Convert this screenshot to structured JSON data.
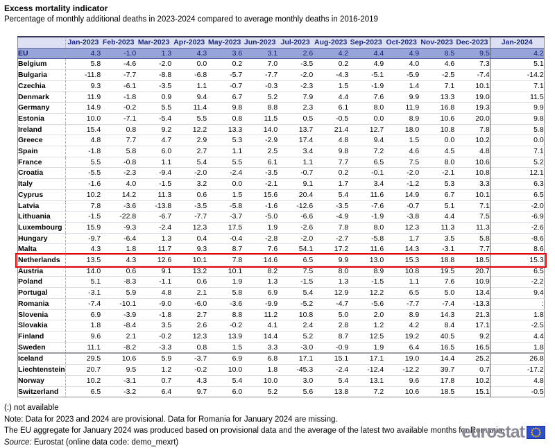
{
  "chart_data": {
    "type": "table",
    "title": "Excess mortality indicator",
    "subtitle": "Percentage of monthly additional deaths in 2023-2024 compared to average monthly deaths in 2016-2019",
    "missing_symbol": ":",
    "columns": [
      "Jan-2023",
      "Feb-2023",
      "Mar-2023",
      "Apr-2023",
      "May-2023",
      "Jun-2023",
      "Jul-2023",
      "Aug-2023",
      "Sep-2023",
      "Oct-2023",
      "Nov-2023",
      "Dec-2023",
      "Jan-2024"
    ],
    "rows": [
      {
        "label": "EU",
        "eu": true,
        "values": [
          4.3,
          -1.0,
          1.3,
          4.3,
          3.6,
          3.1,
          2.6,
          4.2,
          4.4,
          4.9,
          8.5,
          9.5,
          4.2
        ]
      },
      {
        "label": "Belgium",
        "values": [
          5.8,
          -4.6,
          -2.0,
          0.0,
          0.2,
          7.0,
          -3.5,
          0.2,
          4.9,
          4.0,
          4.6,
          7.3,
          5.1
        ]
      },
      {
        "label": "Bulgaria",
        "values": [
          -11.8,
          -7.7,
          -8.8,
          -6.8,
          -5.7,
          -7.7,
          -2.0,
          -4.3,
          -5.1,
          -5.9,
          -2.5,
          -7.4,
          -14.2
        ]
      },
      {
        "label": "Czechia",
        "values": [
          9.3,
          -6.1,
          -3.5,
          1.1,
          -0.7,
          -0.3,
          -2.3,
          1.5,
          -1.9,
          1.4,
          7.1,
          10.1,
          7.1
        ]
      },
      {
        "label": "Denmark",
        "values": [
          11.9,
          -1.8,
          0.9,
          9.4,
          6.7,
          5.2,
          7.9,
          4.4,
          7.6,
          9.9,
          13.3,
          19.0,
          11.5
        ]
      },
      {
        "label": "Germany",
        "values": [
          14.9,
          -0.2,
          5.5,
          11.4,
          9.8,
          8.8,
          2.3,
          6.1,
          8.0,
          11.9,
          16.8,
          19.3,
          9.9
        ]
      },
      {
        "label": "Estonia",
        "values": [
          10.0,
          -7.1,
          -5.4,
          5.5,
          0.8,
          11.5,
          0.5,
          -0.5,
          0.0,
          8.9,
          10.6,
          20.0,
          9.8
        ]
      },
      {
        "label": "Ireland",
        "values": [
          15.4,
          0.8,
          9.2,
          12.2,
          13.3,
          14.0,
          13.7,
          21.4,
          12.7,
          18.0,
          10.8,
          7.8,
          5.8
        ]
      },
      {
        "label": "Greece",
        "values": [
          4.8,
          7.7,
          4.7,
          2.9,
          5.3,
          -2.9,
          17.4,
          4.8,
          9.4,
          1.5,
          0.0,
          10.2,
          0.0
        ]
      },
      {
        "label": "Spain",
        "values": [
          -1.8,
          5.8,
          6.0,
          2.7,
          1.1,
          2.5,
          3.4,
          9.8,
          7.2,
          4.6,
          4.5,
          4.8,
          7.1
        ]
      },
      {
        "label": "France",
        "values": [
          5.5,
          -0.8,
          1.1,
          5.4,
          5.5,
          6.1,
          1.1,
          7.7,
          6.5,
          7.5,
          8.0,
          10.6,
          5.2
        ]
      },
      {
        "label": "Croatia",
        "values": [
          -5.5,
          -2.3,
          -9.4,
          -2.0,
          -2.4,
          -3.5,
          -0.7,
          0.2,
          -0.1,
          -2.0,
          -2.1,
          10.8,
          12.1
        ]
      },
      {
        "label": "Italy",
        "values": [
          -1.6,
          4.0,
          -1.5,
          3.2,
          0.0,
          -2.1,
          9.1,
          1.7,
          3.4,
          -1.2,
          5.3,
          3.3,
          6.3
        ]
      },
      {
        "label": "Cyprus",
        "values": [
          10.2,
          14.2,
          11.3,
          0.6,
          1.5,
          15.6,
          20.4,
          5.4,
          11.6,
          14.9,
          6.7,
          10.1,
          6.5
        ]
      },
      {
        "label": "Latvia",
        "values": [
          7.8,
          -3.6,
          -13.8,
          -3.5,
          -5.8,
          -1.6,
          -12.6,
          -3.5,
          -7.6,
          -0.7,
          5.1,
          7.1,
          -2.0
        ]
      },
      {
        "label": "Lithuania",
        "values": [
          -1.5,
          -22.8,
          -6.7,
          -7.7,
          -3.7,
          -5.0,
          -6.6,
          -4.9,
          -1.9,
          -3.8,
          4.4,
          7.5,
          -6.9
        ]
      },
      {
        "label": "Luxembourg",
        "values": [
          15.9,
          -9.3,
          -2.4,
          12.3,
          17.5,
          1.9,
          -2.6,
          7.8,
          8.0,
          12.3,
          11.3,
          11.3,
          -2.6
        ]
      },
      {
        "label": "Hungary",
        "values": [
          -9.7,
          -6.4,
          1.3,
          0.4,
          -0.4,
          -2.8,
          -2.0,
          -2.7,
          -5.8,
          1.7,
          3.5,
          5.8,
          -8.6
        ]
      },
      {
        "label": "Malta",
        "values": [
          4.3,
          1.8,
          11.7,
          9.3,
          8.7,
          7.6,
          54.1,
          17.2,
          11.6,
          14.3,
          -3.1,
          7.7,
          8.6
        ]
      },
      {
        "label": "Netherlands",
        "highlight": true,
        "values": [
          13.5,
          4.3,
          12.6,
          10.1,
          7.8,
          14.6,
          6.5,
          9.9,
          13.0,
          15.3,
          18.8,
          18.5,
          15.3
        ]
      },
      {
        "label": "Austria",
        "values": [
          14.0,
          0.6,
          9.1,
          13.2,
          10.1,
          8.2,
          7.5,
          8.0,
          8.9,
          10.8,
          19.5,
          20.7,
          6.5
        ]
      },
      {
        "label": "Poland",
        "values": [
          5.1,
          -8.3,
          -1.1,
          0.6,
          1.9,
          1.3,
          -1.5,
          1.3,
          -1.5,
          1.1,
          7.6,
          10.9,
          -2.2
        ]
      },
      {
        "label": "Portugal",
        "values": [
          -3.1,
          5.9,
          4.8,
          2.1,
          5.8,
          6.9,
          5.4,
          12.9,
          12.2,
          6.5,
          5.0,
          13.4,
          9.4
        ]
      },
      {
        "label": "Romania",
        "values": [
          -7.4,
          -10.1,
          -9.0,
          -6.0,
          -3.6,
          -9.9,
          -5.2,
          -4.7,
          -5.6,
          -7.7,
          -7.4,
          -13.3,
          ":"
        ]
      },
      {
        "label": "Slovenia",
        "values": [
          6.9,
          -3.9,
          -1.8,
          2.7,
          8.8,
          11.2,
          10.8,
          5.0,
          2.0,
          8.9,
          14.3,
          21.3,
          1.8
        ]
      },
      {
        "label": "Slovakia",
        "values": [
          1.8,
          -8.4,
          3.5,
          2.6,
          -0.2,
          4.1,
          2.4,
          2.8,
          1.2,
          4.2,
          8.4,
          17.1,
          -2.5
        ]
      },
      {
        "label": "Finland",
        "values": [
          9.6,
          2.1,
          -0.2,
          12.3,
          13.9,
          14.4,
          5.2,
          8.7,
          12.5,
          19.2,
          40.5,
          9.2,
          4.4
        ]
      },
      {
        "label": "Sweden",
        "values": [
          11.1,
          -8.2,
          -3.3,
          0.8,
          1.5,
          3.3,
          -3.0,
          -0.9,
          1.9,
          6.4,
          16.5,
          16.5,
          1.8
        ]
      },
      {
        "label": "Iceland",
        "separator_before": true,
        "values": [
          29.5,
          10.6,
          5.9,
          -3.7,
          6.9,
          6.8,
          17.1,
          15.1,
          17.1,
          19.0,
          14.4,
          25.2,
          26.8
        ]
      },
      {
        "label": "Liechtenstein",
        "values": [
          20.7,
          9.5,
          1.2,
          -0.2,
          10.0,
          1.8,
          -45.3,
          -2.4,
          -12.4,
          -12.2,
          39.7,
          0.7,
          -17.2
        ]
      },
      {
        "label": "Norway",
        "values": [
          10.2,
          -3.1,
          0.7,
          4.3,
          5.4,
          10.0,
          3.0,
          5.4,
          13.1,
          9.6,
          17.8,
          10.2,
          4.8
        ]
      },
      {
        "label": "Switzerland",
        "values": [
          6.5,
          -3.2,
          6.4,
          9.7,
          6.0,
          5.2,
          5.6,
          13.8,
          7.2,
          10.6,
          18.5,
          15.1,
          -0.5
        ]
      }
    ],
    "colors": {
      "eu_row_bg": "#96a4d9",
      "header_bg": "#dce0f0",
      "header_text": "#1e2b85",
      "highlight_border": "#e60000"
    }
  },
  "footnotes": {
    "not_available": "(:) not available",
    "note": "Note: Data for 2023 and 2024 are provisional. Data for Romania for January 2024 are missing.",
    "eu_aggregate": "The EU aggregate for January 2024 was produced based on provisional data and the average of the latest two available months for Romania.",
    "source_label": "Source:",
    "source_text": " Eurostat (online data code: demo_mexrt)"
  },
  "logo": {
    "text": "eurostat",
    "flag_icon": "eu-flag-icon"
  }
}
